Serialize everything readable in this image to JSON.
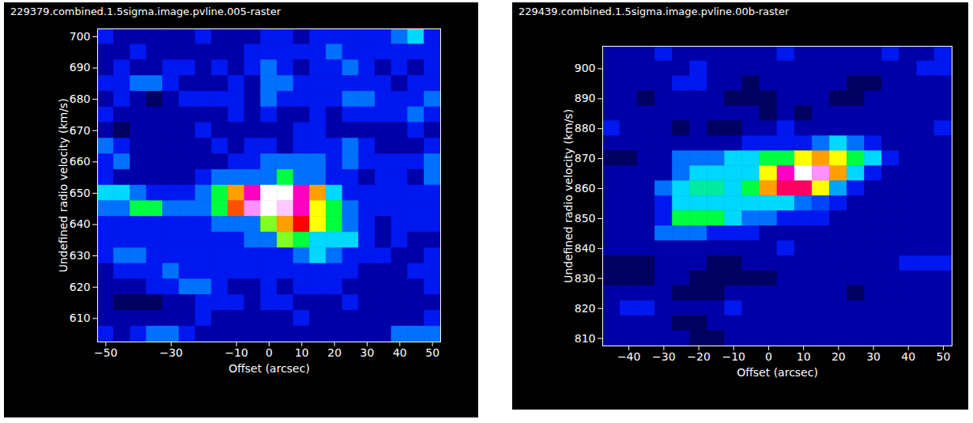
{
  "chart_data": [
    {
      "type": "heatmap",
      "title": "229379.combined.1.5sigma.image.pvline.005-raster",
      "x_label": "Offset (arcsec)",
      "y_label": "Undefined radio velocity (km/s)",
      "xlim": [
        -52.5,
        52.5
      ],
      "ylim": [
        602.5,
        702.5
      ],
      "xticks": [
        -50,
        -30,
        -10,
        0,
        10,
        20,
        30,
        40,
        50
      ],
      "yticks": [
        610,
        620,
        630,
        640,
        650,
        660,
        670,
        680,
        690,
        700
      ],
      "zlim": [
        0,
        12
      ],
      "x": [
        -50,
        -45,
        -40,
        -35,
        -30,
        -25,
        -20,
        -15,
        -10,
        -5,
        0,
        5,
        10,
        15,
        20,
        25,
        30,
        35,
        40,
        45,
        50
      ],
      "y": [
        700,
        695,
        690,
        685,
        680,
        675,
        670,
        665,
        660,
        655,
        650,
        645,
        640,
        635,
        630,
        625,
        620,
        615,
        610,
        605
      ],
      "values": [
        [
          3,
          2,
          2,
          2,
          2,
          2,
          3,
          2,
          2,
          2,
          3,
          3,
          2,
          3,
          3,
          3,
          3,
          3,
          4,
          5,
          3
        ],
        [
          2,
          2,
          3,
          2,
          2,
          2,
          2,
          2,
          2,
          3,
          3,
          3,
          3,
          3,
          4,
          3,
          3,
          3,
          3,
          3,
          3
        ],
        [
          2,
          3,
          2,
          2,
          3,
          3,
          2,
          3,
          2,
          3,
          4,
          3,
          2,
          3,
          3,
          4,
          3,
          2,
          3,
          2,
          3
        ],
        [
          3,
          3,
          4,
          4,
          3,
          2,
          2,
          2,
          3,
          2,
          4,
          4,
          3,
          3,
          3,
          3,
          3,
          3,
          2,
          3,
          3
        ],
        [
          2,
          3,
          2,
          1,
          2,
          3,
          3,
          3,
          3,
          2,
          4,
          3,
          3,
          3,
          3,
          4,
          4,
          3,
          3,
          3,
          4
        ],
        [
          3,
          2,
          2,
          2,
          2,
          2,
          2,
          2,
          3,
          2,
          3,
          2,
          2,
          3,
          2,
          3,
          3,
          3,
          3,
          4,
          3
        ],
        [
          2,
          1,
          2,
          2,
          2,
          2,
          3,
          2,
          2,
          2,
          2,
          2,
          3,
          3,
          2,
          2,
          2,
          2,
          2,
          3,
          2
        ],
        [
          4,
          3,
          2,
          2,
          2,
          2,
          2,
          3,
          2,
          3,
          3,
          2,
          3,
          3,
          3,
          4,
          3,
          2,
          2,
          2,
          3
        ],
        [
          3,
          4,
          2,
          2,
          2,
          2,
          2,
          2,
          3,
          3,
          4,
          4,
          4,
          4,
          3,
          4,
          3,
          3,
          3,
          3,
          4
        ],
        [
          3,
          2,
          2,
          2,
          2,
          2,
          3,
          4,
          4,
          4,
          4,
          6,
          4,
          4,
          3,
          3,
          2,
          3,
          3,
          2,
          4
        ],
        [
          5,
          5,
          4,
          3,
          3,
          3,
          4,
          6,
          8,
          10,
          12,
          12,
          10,
          8,
          5,
          3,
          3,
          3,
          3,
          3,
          3
        ],
        [
          4,
          4,
          6,
          6,
          4,
          4,
          4,
          6,
          8.5,
          11,
          12,
          11.5,
          10,
          7,
          6,
          4,
          3,
          3,
          3,
          3,
          3
        ],
        [
          3,
          3,
          3,
          3,
          3,
          3,
          3,
          4,
          4,
          4,
          6.5,
          8,
          9,
          7,
          6,
          4,
          3,
          2,
          3,
          3,
          3
        ],
        [
          3,
          3,
          3,
          3,
          3,
          3,
          3,
          3,
          3,
          4,
          4,
          6.5,
          6,
          5,
          5,
          5,
          3,
          2,
          3,
          2,
          2
        ],
        [
          3,
          4,
          4,
          3,
          3,
          3,
          3,
          3,
          3,
          3,
          3,
          3,
          4,
          5,
          4,
          3,
          3,
          3,
          2,
          2,
          3
        ],
        [
          2,
          3,
          3,
          3,
          4,
          3,
          3,
          3,
          3,
          3,
          3,
          3,
          3,
          3,
          3,
          3,
          2,
          2,
          2,
          3,
          3
        ],
        [
          2,
          2,
          2,
          3,
          3,
          4,
          4,
          3,
          2,
          2,
          3,
          2,
          3,
          3,
          3,
          2,
          2,
          2,
          2,
          2,
          3
        ],
        [
          2,
          1,
          1,
          1,
          2,
          2,
          3,
          3,
          3,
          2,
          3,
          3,
          2,
          2,
          2,
          3,
          2,
          2,
          2,
          2,
          2
        ],
        [
          2,
          2,
          2,
          2,
          2,
          2,
          3,
          2,
          2,
          2,
          2,
          2,
          3,
          2,
          2,
          2,
          2,
          2,
          2,
          2,
          3
        ],
        [
          3,
          2,
          3,
          4,
          4,
          3,
          2,
          2,
          2,
          2,
          2,
          2,
          2,
          2,
          2,
          2,
          2,
          2,
          4,
          4,
          4
        ]
      ]
    },
    {
      "type": "heatmap",
      "title": "229439.combined.1.5sigma.image.pvline.00b-raster",
      "x_label": "Offset (arcsec)",
      "y_label": "Undefined radio velocity (km/s)",
      "xlim": [
        -47.5,
        52.5
      ],
      "ylim": [
        807.5,
        907.5
      ],
      "xticks": [
        -40,
        -30,
        -20,
        -10,
        0,
        10,
        20,
        30,
        40,
        50
      ],
      "yticks": [
        810,
        820,
        830,
        840,
        850,
        860,
        870,
        880,
        890,
        900
      ],
      "zlim": [
        0,
        12
      ],
      "x": [
        -45,
        -40,
        -35,
        -30,
        -25,
        -20,
        -15,
        -10,
        -5,
        0,
        5,
        10,
        15,
        20,
        25,
        30,
        35,
        40,
        45,
        50
      ],
      "y": [
        905,
        900,
        895,
        890,
        885,
        880,
        875,
        870,
        865,
        860,
        855,
        850,
        845,
        840,
        835,
        830,
        825,
        820,
        815,
        810
      ],
      "values": [
        [
          2,
          2,
          2,
          3,
          2,
          2,
          2,
          2,
          2,
          2,
          3,
          2,
          2,
          2,
          2,
          2,
          3,
          2,
          2,
          3
        ],
        [
          2,
          2,
          2,
          2,
          2,
          3,
          2,
          2,
          2,
          2,
          2,
          2,
          2,
          2,
          2,
          2,
          2,
          2,
          3,
          3
        ],
        [
          2,
          2,
          2,
          2,
          3,
          3,
          2,
          2,
          1,
          2,
          2,
          2,
          2,
          2,
          1,
          1,
          2,
          2,
          2,
          2
        ],
        [
          2,
          2,
          1,
          2,
          2,
          2,
          2,
          1,
          1,
          1,
          2,
          2,
          2,
          1,
          1,
          2,
          2,
          2,
          2,
          2
        ],
        [
          2,
          2,
          2,
          2,
          2,
          2,
          2,
          2,
          2,
          1,
          2,
          1,
          2,
          2,
          2,
          2,
          2,
          2,
          2,
          2
        ],
        [
          3,
          2,
          2,
          2,
          1,
          2,
          1,
          1,
          2,
          2,
          3,
          2,
          2,
          2,
          2,
          2,
          2,
          2,
          2,
          3
        ],
        [
          2,
          2,
          2,
          2,
          2,
          2,
          2,
          2,
          3,
          3,
          3,
          3,
          4,
          5,
          4,
          3,
          2,
          2,
          2,
          2
        ],
        [
          1,
          1,
          2,
          2,
          4,
          4,
          4,
          5,
          5,
          6,
          6,
          7,
          8,
          7,
          6,
          5,
          3,
          2,
          2,
          2
        ],
        [
          2,
          2,
          2,
          2,
          4,
          5,
          5,
          5,
          5,
          7,
          10,
          12,
          11,
          8,
          5,
          3,
          2,
          2,
          2,
          2
        ],
        [
          2,
          2,
          2,
          4,
          5,
          5.5,
          5.5,
          5,
          6,
          8,
          9.5,
          9.5,
          7,
          4.5,
          3,
          2,
          2,
          2,
          2,
          2
        ],
        [
          2,
          2,
          2,
          3,
          5,
          5,
          5,
          5,
          5,
          5,
          5,
          4,
          3.5,
          3,
          2,
          2,
          2,
          2,
          2,
          2
        ],
        [
          2,
          2,
          2,
          3,
          6,
          6,
          6,
          5,
          4,
          4,
          3,
          3,
          3,
          2,
          2,
          2,
          2,
          2,
          2,
          2
        ],
        [
          2,
          2,
          2,
          4,
          4,
          4,
          3,
          3,
          3,
          2,
          2,
          2,
          2,
          2,
          2,
          2,
          2,
          2,
          2,
          2
        ],
        [
          2,
          2,
          2,
          2,
          2,
          2,
          2,
          2,
          2,
          2,
          3,
          2,
          2,
          2,
          2,
          2,
          2,
          2,
          2,
          2
        ],
        [
          1,
          1,
          1,
          2,
          2,
          2,
          1,
          1,
          2,
          2,
          2,
          2,
          2,
          2,
          2,
          2,
          2,
          3,
          3,
          3
        ],
        [
          1,
          1,
          1,
          2,
          2,
          1,
          1,
          1,
          1,
          1,
          2,
          2,
          2,
          2,
          2,
          2,
          2,
          2,
          2,
          2
        ],
        [
          2,
          2,
          2,
          2,
          1,
          1,
          1,
          2,
          2,
          2,
          2,
          2,
          2,
          2,
          1,
          2,
          2,
          2,
          2,
          2
        ],
        [
          2,
          3,
          3,
          2,
          2,
          2,
          2,
          3,
          2,
          2,
          2,
          2,
          2,
          2,
          2,
          2,
          2,
          2,
          2,
          2
        ],
        [
          2,
          2,
          2,
          2,
          1,
          1,
          2,
          2,
          2,
          2,
          2,
          2,
          2,
          2,
          2,
          2,
          2,
          2,
          2,
          2
        ],
        [
          2,
          2,
          2,
          2,
          2,
          1,
          1,
          2,
          2,
          2,
          2,
          2,
          2,
          2,
          2,
          2,
          2,
          2,
          2,
          2
        ]
      ]
    }
  ]
}
